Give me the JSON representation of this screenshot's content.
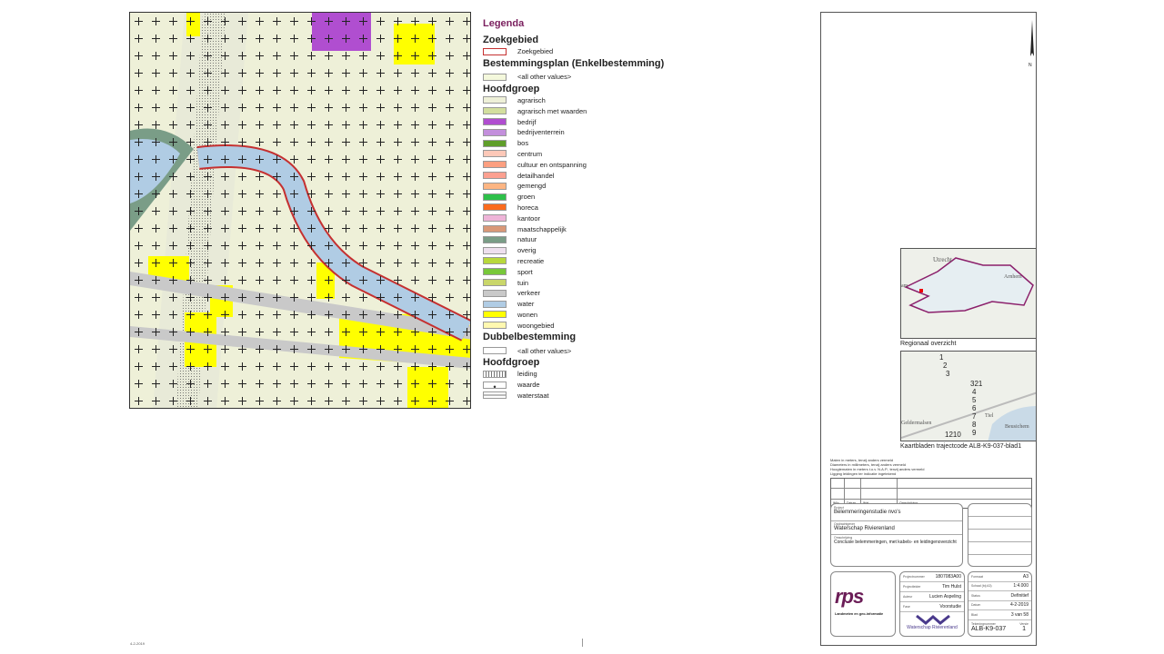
{
  "legend": {
    "title": "Legenda",
    "zoekgebied_heading": "Zoekgebied",
    "zoekgebied_item": "Zoekgebied",
    "enkel_heading": "Bestemmingsplan (Enkelbestemming)",
    "enkel_other": "<all other values>",
    "hoofdgroep_heading": "Hoofdgroep",
    "enkel_items": [
      {
        "label": "agrarisch",
        "color": "#eef0d8"
      },
      {
        "label": "agrarisch met waarden",
        "color": "#d3df9e"
      },
      {
        "label": "bedrijf",
        "color": "#b04ed0"
      },
      {
        "label": "bedrijventerrein",
        "color": "#c38fdc"
      },
      {
        "label": "bos",
        "color": "#5f9e2a"
      },
      {
        "label": "centrum",
        "color": "#fdc8b8"
      },
      {
        "label": "cultuur en ontspanning",
        "color": "#fc9f80"
      },
      {
        "label": "detailhandel",
        "color": "#fca090"
      },
      {
        "label": "gemengd",
        "color": "#fdb583"
      },
      {
        "label": "groen",
        "color": "#2ec04a"
      },
      {
        "label": "horeca",
        "color": "#fa6b1e"
      },
      {
        "label": "kantoor",
        "color": "#eeb4d8"
      },
      {
        "label": "maatschappelijk",
        "color": "#d99878"
      },
      {
        "label": "natuur",
        "color": "#7a9d87"
      },
      {
        "label": "overig",
        "color": "#eedfee"
      },
      {
        "label": "recreatie",
        "color": "#b8d83c"
      },
      {
        "label": "sport",
        "color": "#78c83a"
      },
      {
        "label": "tuin",
        "color": "#c9d66a"
      },
      {
        "label": "verkeer",
        "color": "#c9c9c9"
      },
      {
        "label": "water",
        "color": "#b0cce4"
      },
      {
        "label": "wonen",
        "color": "#ffff00"
      },
      {
        "label": "woongebied",
        "color": "#fff8b0"
      }
    ],
    "dubbel_heading": "Dubbelbestemming",
    "dubbel_other": "<all other values>",
    "dubbel_hoofdgroep_heading": "Hoofdgroep",
    "dubbel_items": [
      {
        "label": "leiding"
      },
      {
        "label": "waarde"
      },
      {
        "label": "waterstaat"
      }
    ]
  },
  "insets": {
    "regional_caption": "Regionaal overzicht",
    "regional_labels": [
      "Utrecht",
      "Arnhem",
      "am"
    ],
    "sheets_caption": "Kaartbladen trajectcode ALB-K9-037-blad1",
    "sheets_labels": [
      "Tiel",
      "Geldermalsen",
      "Beusichem"
    ],
    "sheet_numbers": [
      "1",
      "2",
      "3",
      "321",
      "4",
      "5",
      "6",
      "7",
      "8",
      "9",
      "1210"
    ]
  },
  "north_label": "N",
  "notes": [
    "Maten in meters, tenzij anders vermeld",
    "Diameters in millimeters, tenzij anders vermeld",
    "Hoogtematen in meters t.o.v. N.A.P., tenzij anders vermeld",
    "Ligging leidingen ter indicatie ingetekend"
  ],
  "revision_headers": [
    "Wijz.",
    "Datum",
    "Wat",
    "Omschrijving"
  ],
  "project": {
    "project_label": "Project",
    "project": "Belemmeringenstudie nvo's",
    "client_label": "Opdrachtgever",
    "client": "Waterschap Rivierenland",
    "desc_label": "Omschrijving",
    "description": "Conclusie belemmeringen, met kabels- en leidingenoverzicht"
  },
  "company": {
    "logo": "rps",
    "tagline": "Landmeten en geo-informatie"
  },
  "details_mid": [
    {
      "label": "Projectnummer",
      "value": "1807083A00"
    },
    {
      "label": "Projectleider",
      "value": "Tim Hulst"
    },
    {
      "label": "Auteur",
      "value": "Lucien Aspeling"
    },
    {
      "label": "Fase",
      "value": "Voorstudie"
    }
  ],
  "waterschap_logo": "Waterschap Rivierenland",
  "details_right": [
    {
      "label": "Formaat",
      "value": "A3"
    },
    {
      "label": "Schaal (bij A3)",
      "value": "1:4.000"
    },
    {
      "label": "Status",
      "value": "Definitief"
    },
    {
      "label": "Datum",
      "value": "4-2-2019"
    },
    {
      "label": "Blad",
      "value": "3 van 58"
    }
  ],
  "drawing": {
    "label": "Tekeningnummer",
    "number": "ALB-K9-037",
    "version_label": "Versie",
    "version": "1"
  },
  "footer_left": "4-2-2019"
}
